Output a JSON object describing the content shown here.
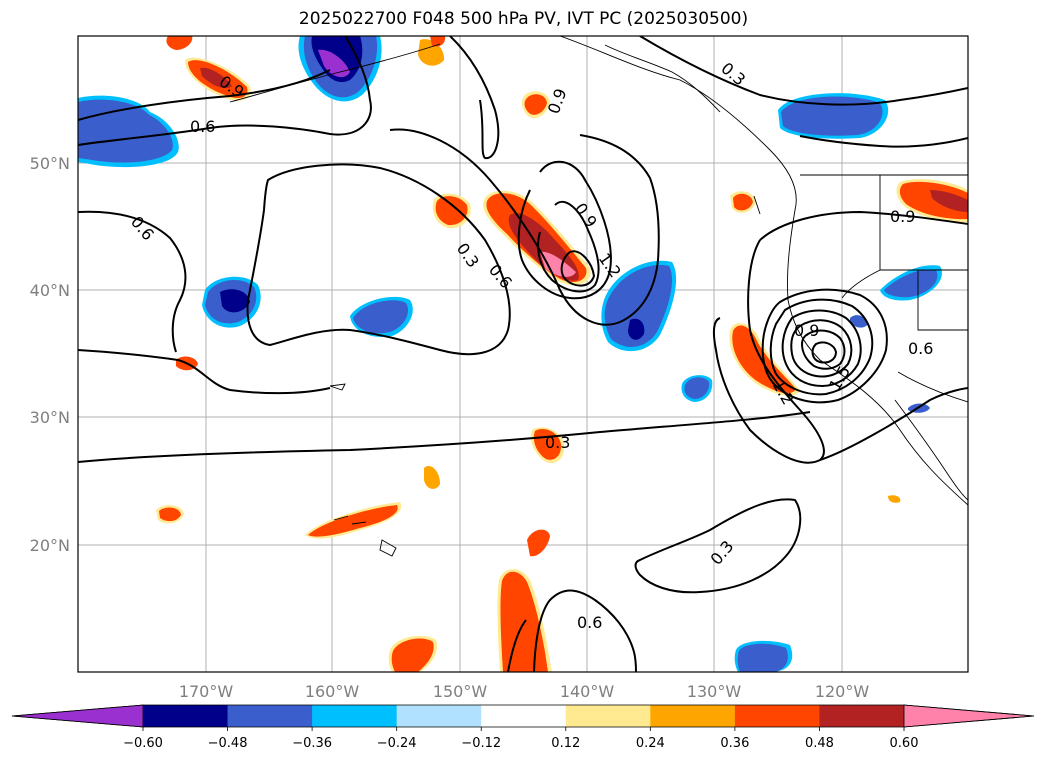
{
  "title": "2025022700 F048 500 hPa PV, IVT PC (2025030500)",
  "map": {
    "lat_labels": [
      "50°N",
      "40°N",
      "30°N",
      "20°N"
    ],
    "lon_labels": [
      "170°W",
      "160°W",
      "150°W",
      "140°W",
      "130°W",
      "120°W"
    ],
    "contour_labels": [
      "0.9",
      "0.6",
      "0.6",
      "0.3",
      "0.6",
      "0.9",
      "1.2",
      "0.9",
      "0.3",
      "0.9",
      "0.9",
      "0.6",
      "1.5",
      "1.2",
      "0.3",
      "0.3",
      "0.6"
    ]
  },
  "colorbar": {
    "ticks": [
      "−0.60",
      "−0.48",
      "−0.36",
      "−0.24",
      "−0.12",
      "0.12",
      "0.24",
      "0.36",
      "0.48",
      "0.60"
    ],
    "colors": [
      "#9b30d0",
      "#00008b",
      "#3a5fcd",
      "#00bfff",
      "#b0e2ff",
      "#ffffff",
      "#ffe991",
      "#ffa500",
      "#ff4500",
      "#b22222",
      "#ff82ab",
      "#ff82ab"
    ]
  }
}
